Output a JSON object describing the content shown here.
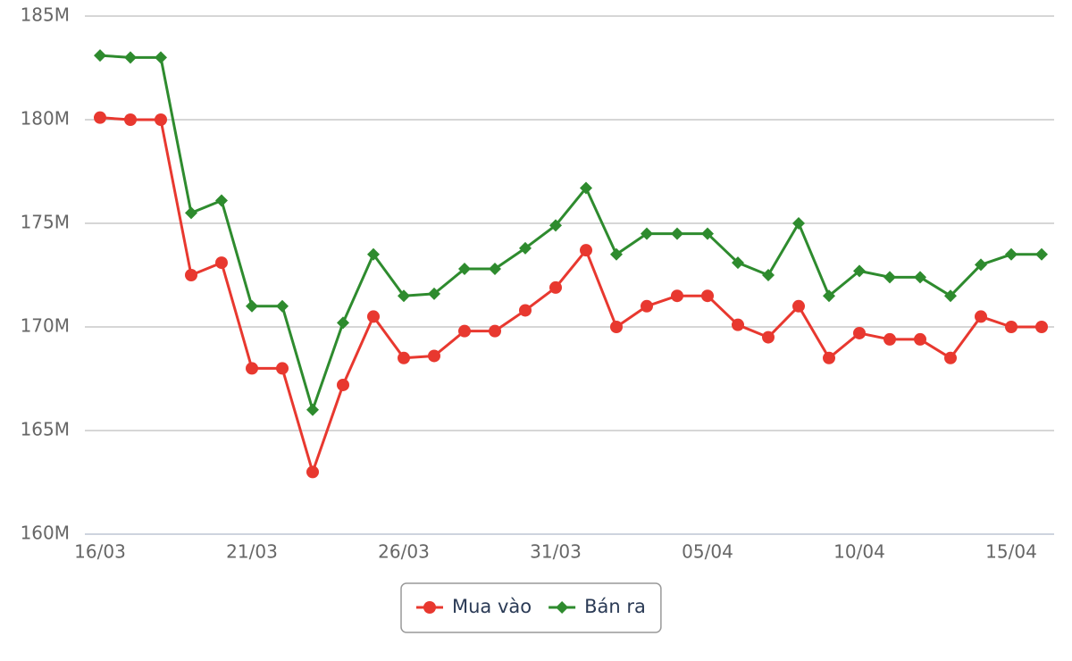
{
  "chart_data": {
    "type": "line",
    "categories": [
      "16/03",
      null,
      null,
      null,
      null,
      "21/03",
      null,
      null,
      null,
      null,
      "26/03",
      null,
      null,
      null,
      null,
      "31/03",
      null,
      null,
      null,
      null,
      "05/04",
      null,
      null,
      null,
      null,
      "10/04",
      null,
      null,
      null,
      null,
      "15/04",
      null
    ],
    "series": [
      {
        "name": "Mua vào",
        "color": "#e8382f",
        "marker": "circle",
        "values": [
          180.1,
          180.0,
          180.0,
          172.5,
          173.1,
          168.0,
          168.0,
          163.0,
          167.2,
          170.5,
          168.5,
          168.6,
          169.8,
          169.8,
          170.8,
          171.9,
          173.7,
          170.0,
          171.0,
          171.5,
          171.5,
          170.1,
          169.5,
          171.0,
          168.5,
          169.7,
          169.4,
          169.4,
          168.5,
          170.5,
          170.0,
          170.0
        ]
      },
      {
        "name": "Bán ra",
        "color": "#2e8b2e",
        "marker": "diamond",
        "values": [
          183.1,
          183.0,
          183.0,
          175.5,
          176.1,
          171.0,
          171.0,
          166.0,
          170.2,
          173.5,
          171.5,
          171.6,
          172.8,
          172.8,
          173.8,
          174.9,
          176.7,
          173.5,
          174.5,
          174.5,
          174.5,
          173.1,
          172.5,
          175.0,
          171.5,
          172.7,
          172.4,
          172.4,
          171.5,
          173.0,
          173.5,
          173.5
        ]
      }
    ],
    "ylim": [
      160,
      185
    ],
    "yticks": [
      {
        "value": 160,
        "label": "160M"
      },
      {
        "value": 165,
        "label": "165M"
      },
      {
        "value": 170,
        "label": "170M"
      },
      {
        "value": 175,
        "label": "175M"
      },
      {
        "value": 180,
        "label": "180M"
      },
      {
        "value": 185,
        "label": "185M"
      }
    ],
    "grid": true,
    "legend": "bottom"
  }
}
